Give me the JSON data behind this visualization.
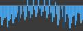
{
  "values": [
    -3.0,
    -5.5,
    -4.0,
    -3.5,
    -3.0,
    -5.8,
    -4.2,
    -3.8,
    -2.5,
    -5.0,
    -3.8,
    -3.2,
    -2.0,
    -4.5,
    -3.5,
    -2.5,
    -1.8,
    -4.0,
    -3.0,
    1.5,
    -1.5,
    -3.5,
    -2.5,
    2.5,
    -1.2,
    -3.0,
    -2.0,
    3.5,
    -1.0,
    -2.8,
    -1.8,
    4.5,
    -1.5,
    -3.5,
    -2.5,
    3.0,
    -2.0,
    -4.5,
    -3.2,
    1.0,
    -2.5,
    -5.5,
    -4.0,
    -1.0,
    -3.0,
    -6.0,
    -4.5,
    -2.5,
    -3.5,
    -6.2,
    -5.0,
    -3.0,
    -2.8,
    -5.5,
    -4.2,
    -2.0,
    -2.2,
    -5.0,
    -4.0
  ],
  "bar_color": "#4da6e8",
  "edge_color": "#2a7abf",
  "background_color": "#3a3a3a",
  "ylim": [
    -7.0,
    1.5
  ]
}
